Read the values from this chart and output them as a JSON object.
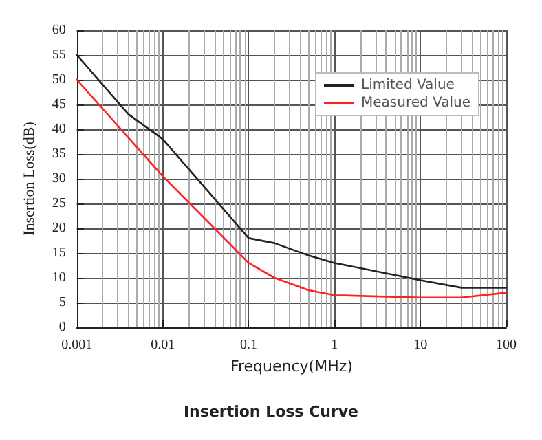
{
  "chart_data": {
    "type": "line",
    "title": "Insertion Loss Curve",
    "xlabel": "Frequency(MHz)",
    "ylabel": "Insertion Loss(dB)",
    "log": "x",
    "xlim": [
      0.001,
      100
    ],
    "xticks": [
      0.001,
      0.01,
      0.1,
      1,
      10,
      100
    ],
    "ylim": [
      0,
      60
    ],
    "yticks": [
      0,
      5,
      10,
      15,
      20,
      25,
      30,
      35,
      40,
      45,
      50,
      55,
      60
    ],
    "grid": true,
    "legend": "top right",
    "marker": "none",
    "line_style": "solid",
    "series": [
      {
        "name": "Limited Value",
        "color": "#222222",
        "x": [
          0.001,
          0.004,
          0.01,
          0.1,
          0.2,
          0.5,
          1,
          10,
          30,
          100
        ],
        "values": [
          55,
          43,
          38,
          18,
          17,
          14.5,
          13,
          9.5,
          8,
          8
        ]
      },
      {
        "name": "Measured Value",
        "color": "#ff2020",
        "x": [
          0.001,
          0.01,
          0.1,
          0.2,
          0.5,
          1,
          10,
          30,
          100
        ],
        "values": [
          50,
          30.5,
          13,
          10,
          7.5,
          6.5,
          6,
          6,
          7
        ]
      }
    ]
  }
}
